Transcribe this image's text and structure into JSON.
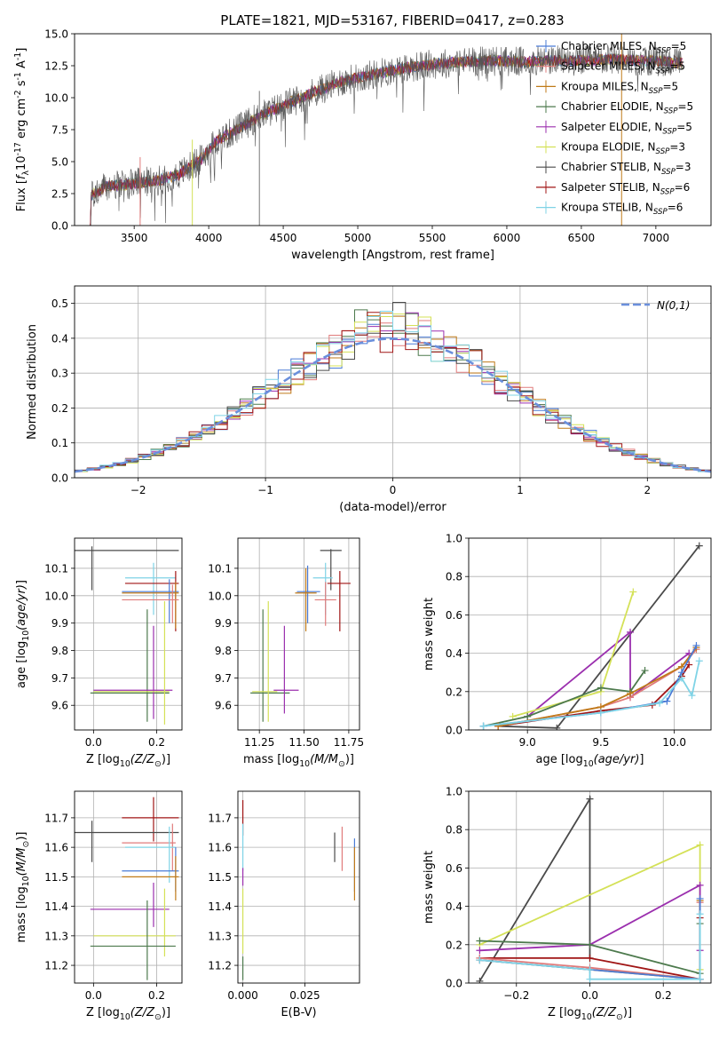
{
  "figure": {
    "title": "PLATE=1821, MJD=53167, FIBERID=0417, z=0.283",
    "legend_entries": [
      {
        "name": "Chabrier MILES, N$_{SSP}$=5",
        "color": "#4a7bd6"
      },
      {
        "name": "Salpeter MILES, N$_{SSP}$=5",
        "color": "#e07b7b"
      },
      {
        "name": "Kroupa MILES, N$_{SSP}$=5",
        "color": "#c07a18"
      },
      {
        "name": "Chabrier ELODIE, N$_{SSP}$=5",
        "color": "#4d7a4d"
      },
      {
        "name": "Salpeter ELODIE, N$_{SSP}$=5",
        "color": "#9b2fae"
      },
      {
        "name": "Kroupa ELODIE, N$_{SSP}$=3",
        "color": "#d4e157"
      },
      {
        "name": "Chabrier STELIB, N$_{SSP}$=3",
        "color": "#4a4a4a"
      },
      {
        "name": "Salpeter STELIB, N$_{SSP}$=6",
        "color": "#a01515"
      },
      {
        "name": "Kroupa STELIB, N$_{SSP}$=6",
        "color": "#7fd3e6"
      }
    ]
  },
  "chart_data": [
    {
      "id": "spectrum",
      "type": "line",
      "xlabel": "wavelength [Angstrom, rest frame]",
      "ylabel": "Flux [$f_{\\lambda}10^{-17}$ erg cm$^{-2}$ s$^{-1}$ A$^{-1}$]",
      "xlim": [
        3100,
        7370
      ],
      "ylim": [
        0,
        15
      ],
      "xticks": [
        "3500",
        "4000",
        "4500",
        "5000",
        "5500",
        "6000",
        "6500",
        "7000"
      ],
      "yticks": [
        "0.0",
        "2.5",
        "5.0",
        "7.5",
        "10.0",
        "12.5",
        "15.0"
      ],
      "continuum": [
        [
          3200,
          0
        ],
        [
          3210,
          2.3
        ],
        [
          3300,
          3.0
        ],
        [
          3500,
          3.3
        ],
        [
          3650,
          3.5
        ],
        [
          3800,
          4.0
        ],
        [
          3950,
          5.2
        ],
        [
          4050,
          6.6
        ],
        [
          4200,
          7.6
        ],
        [
          4350,
          8.6
        ],
        [
          4500,
          9.4
        ],
        [
          4700,
          10.4
        ],
        [
          4900,
          11.3
        ],
        [
          5100,
          11.8
        ],
        [
          5300,
          12.3
        ],
        [
          5500,
          12.6
        ],
        [
          5700,
          12.8
        ],
        [
          5900,
          12.9
        ],
        [
          6100,
          12.8
        ],
        [
          6300,
          12.9
        ],
        [
          6500,
          12.9
        ],
        [
          6700,
          13.0
        ],
        [
          6900,
          12.9
        ],
        [
          7100,
          12.8
        ],
        [
          7180,
          12.7
        ]
      ],
      "features": [
        [
          3540,
          0
        ],
        [
          3890,
          0
        ],
        [
          4340,
          0
        ],
        [
          6770,
          0
        ]
      ]
    },
    {
      "id": "residuals",
      "type": "bar",
      "xlabel": "(data-model)/error",
      "ylabel": "Normed distribution",
      "xlim": [
        -2.5,
        2.5
      ],
      "ylim": [
        0,
        0.55
      ],
      "xticks": [
        "−2",
        "−1",
        "0",
        "1",
        "2"
      ],
      "yticks": [
        "0.0",
        "0.1",
        "0.2",
        "0.3",
        "0.4",
        "0.5"
      ],
      "legend": "$\\mathcal{N}(0,1)$",
      "gaussian_color": "#6a8fdc"
    },
    {
      "id": "age-vs-z",
      "type": "scatter",
      "xlabel": "Z [$\\log_{10}(Z/Z_\\odot)$]",
      "ylabel": "age  [$\\log_{10}(age/yr)$]",
      "xlim": [
        -0.06,
        0.28
      ],
      "ylim": [
        9.51,
        10.21
      ],
      "xticks": [
        0.0,
        0.2
      ],
      "yticks": [
        9.6,
        9.7,
        9.8,
        9.9,
        10.0,
        10.1
      ],
      "points": [
        {
          "color": "#4a4a4a",
          "x": -0.005,
          "y": 10.165,
          "xl": -0.06,
          "xh": 0.27,
          "yl": 10.02,
          "yh": 10.18
        },
        {
          "color": "#7fd3e6",
          "x": 0.19,
          "y": 10.065,
          "xl": 0.1,
          "xh": 0.26,
          "yl": 9.93,
          "yh": 10.12
        },
        {
          "color": "#a01515",
          "x": 0.26,
          "y": 10.045,
          "xl": 0.1,
          "xh": 0.27,
          "yl": 9.87,
          "yh": 10.09
        },
        {
          "color": "#4a7bd6",
          "x": 0.24,
          "y": 10.015,
          "xl": 0.09,
          "xh": 0.27,
          "yl": 9.9,
          "yh": 10.06
        },
        {
          "color": "#c07a18",
          "x": 0.26,
          "y": 10.01,
          "xl": 0.09,
          "xh": 0.27,
          "yl": 9.88,
          "yh": 10.05
        },
        {
          "color": "#e07b7b",
          "x": 0.25,
          "y": 9.985,
          "xl": 0.09,
          "xh": 0.27,
          "yl": 9.9,
          "yh": 10.04
        },
        {
          "color": "#4d7a4d",
          "x": 0.17,
          "y": 9.645,
          "xl": -0.01,
          "xh": 0.24,
          "yl": 9.54,
          "yh": 9.95
        },
        {
          "color": "#9b2fae",
          "x": 0.19,
          "y": 9.655,
          "xl": 0.0,
          "xh": 0.25,
          "yl": 9.55,
          "yh": 9.89
        },
        {
          "color": "#d4e157",
          "x": 0.225,
          "y": 9.65,
          "xl": 0.0,
          "xh": 0.24,
          "yl": 9.53,
          "yh": 9.98
        }
      ]
    },
    {
      "id": "age-vs-mass",
      "type": "scatter",
      "xlabel": "mass [$\\log_{10}(M/M_\\odot)$]",
      "ylabel": "",
      "xlim": [
        11.13,
        11.81
      ],
      "ylim": [
        9.51,
        10.21
      ],
      "xticks": [
        11.25,
        11.5,
        11.75
      ],
      "yticks": [
        9.6,
        9.7,
        9.8,
        9.9,
        10.0,
        10.1
      ],
      "points": [
        {
          "color": "#4a4a4a",
          "x": 11.65,
          "y": 10.165,
          "xl": 11.59,
          "xh": 11.71,
          "yl": 10.02,
          "yh": 10.17
        },
        {
          "color": "#7fd3e6",
          "x": 11.62,
          "y": 10.065,
          "xl": 11.55,
          "xh": 11.66,
          "yl": 9.93,
          "yh": 10.12
        },
        {
          "color": "#a01515",
          "x": 11.7,
          "y": 10.045,
          "xl": 11.63,
          "xh": 11.76,
          "yl": 9.87,
          "yh": 10.09
        },
        {
          "color": "#4a7bd6",
          "x": 11.52,
          "y": 10.015,
          "xl": 11.46,
          "xh": 11.59,
          "yl": 9.9,
          "yh": 10.11
        },
        {
          "color": "#c07a18",
          "x": 11.51,
          "y": 10.01,
          "xl": 11.45,
          "xh": 11.57,
          "yl": 9.87,
          "yh": 10.1
        },
        {
          "color": "#e07b7b",
          "x": 11.62,
          "y": 9.985,
          "xl": 11.56,
          "xh": 11.68,
          "yl": 9.89,
          "yh": 10.05
        },
        {
          "color": "#4d7a4d",
          "x": 11.27,
          "y": 9.645,
          "xl": 11.2,
          "xh": 11.42,
          "yl": 9.54,
          "yh": 9.95
        },
        {
          "color": "#9b2fae",
          "x": 11.39,
          "y": 9.655,
          "xl": 11.33,
          "xh": 11.47,
          "yl": 9.57,
          "yh": 9.89
        },
        {
          "color": "#d4e157",
          "x": 11.3,
          "y": 9.65,
          "xl": 11.21,
          "xh": 11.35,
          "yl": 9.54,
          "yh": 9.98
        }
      ]
    },
    {
      "id": "weight-vs-age",
      "type": "line",
      "xlabel": "age  [$\\log_{10}(age/yr)$]",
      "ylabel": "mass weight",
      "xlim": [
        8.6,
        10.25
      ],
      "ylim": [
        0,
        1
      ],
      "xticks": [
        9.0,
        9.5,
        10.0
      ],
      "yticks": [
        0.0,
        0.2,
        0.4,
        0.6,
        0.8,
        1.0
      ],
      "series": [
        {
          "color": "#4a4a4a",
          "x": [
            8.8,
            9.2,
            10.17
          ],
          "y": [
            0.02,
            0.01,
            0.96
          ]
        },
        {
          "color": "#9b2fae",
          "x": [
            9.0,
            9.7,
            9.7,
            10.1
          ],
          "y": [
            0.07,
            0.51,
            0.17,
            0.4
          ]
        },
        {
          "color": "#d4e157",
          "x": [
            8.9,
            9.5,
            9.72
          ],
          "y": [
            0.07,
            0.2,
            0.72
          ]
        },
        {
          "color": "#4d7a4d",
          "x": [
            8.7,
            9.0,
            9.5,
            9.7,
            9.8
          ],
          "y": [
            0.02,
            0.07,
            0.22,
            0.2,
            0.31
          ]
        },
        {
          "color": "#a01515",
          "x": [
            8.8,
            9.5,
            9.85,
            10.05,
            10.1
          ],
          "y": [
            0.02,
            0.1,
            0.13,
            0.28,
            0.34
          ]
        },
        {
          "color": "#e07b7b",
          "x": [
            8.8,
            9.5,
            9.7,
            10.05,
            10.15
          ],
          "y": [
            0.02,
            0.12,
            0.17,
            0.33,
            0.42
          ]
        },
        {
          "color": "#c07a18",
          "x": [
            8.8,
            9.5,
            9.7,
            10.05,
            10.15
          ],
          "y": [
            0.02,
            0.12,
            0.19,
            0.33,
            0.43
          ]
        },
        {
          "color": "#4a7bd6",
          "x": [
            8.7,
            9.5,
            9.95,
            10.05,
            10.15
          ],
          "y": [
            0.02,
            0.09,
            0.15,
            0.3,
            0.44
          ]
        },
        {
          "color": "#7fd3e6",
          "x": [
            8.7,
            9.5,
            9.9,
            10.05,
            10.12,
            10.17
          ],
          "y": [
            0.02,
            0.09,
            0.14,
            0.27,
            0.18,
            0.36
          ]
        }
      ]
    },
    {
      "id": "mass-vs-z",
      "type": "scatter",
      "xlabel": "Z [$\\log_{10}(Z/Z_\\odot)$]",
      "ylabel": "mass [$\\log_{10}(M/M_\\odot)$]",
      "xlim": [
        -0.06,
        0.28
      ],
      "ylim": [
        11.14,
        11.79
      ],
      "xticks": [
        0.0,
        0.2
      ],
      "yticks": [
        11.2,
        11.3,
        11.4,
        11.5,
        11.6,
        11.7
      ],
      "points": [
        {
          "color": "#a01515",
          "x": 0.19,
          "y": 11.7,
          "xl": 0.09,
          "xh": 0.27,
          "yl": 11.62,
          "yh": 11.77
        },
        {
          "color": "#4a4a4a",
          "x": -0.005,
          "y": 11.65,
          "xl": -0.06,
          "xh": 0.27,
          "yl": 11.55,
          "yh": 11.69
        },
        {
          "color": "#e07b7b",
          "x": 0.25,
          "y": 11.615,
          "xl": 0.09,
          "xh": 0.26,
          "yl": 11.52,
          "yh": 11.68
        },
        {
          "color": "#7fd3e6",
          "x": 0.24,
          "y": 11.6,
          "xl": 0.1,
          "xh": 0.26,
          "yl": 11.48,
          "yh": 11.67
        },
        {
          "color": "#4a7bd6",
          "x": 0.26,
          "y": 11.52,
          "xl": 0.09,
          "xh": 0.27,
          "yl": 11.45,
          "yh": 11.6
        },
        {
          "color": "#c07a18",
          "x": 0.26,
          "y": 11.5,
          "xl": 0.09,
          "xh": 0.27,
          "yl": 11.42,
          "yh": 11.57
        },
        {
          "color": "#9b2fae",
          "x": 0.19,
          "y": 11.39,
          "xl": -0.01,
          "xh": 0.24,
          "yl": 11.33,
          "yh": 11.48
        },
        {
          "color": "#d4e157",
          "x": 0.225,
          "y": 11.3,
          "xl": 0.0,
          "xh": 0.26,
          "yl": 11.23,
          "yh": 11.46
        },
        {
          "color": "#4d7a4d",
          "x": 0.17,
          "y": 11.265,
          "xl": -0.01,
          "xh": 0.26,
          "yl": 11.15,
          "yh": 11.42
        }
      ]
    },
    {
      "id": "mass-vs-ebv",
      "type": "scatter",
      "xlabel": "E(B-V)",
      "ylabel": "",
      "xlim": [
        -0.002,
        0.047
      ],
      "ylim": [
        11.14,
        11.79
      ],
      "xtick_values": [
        0.0,
        0.025
      ],
      "xticks": [
        "0.000",
        "0.025"
      ],
      "yticks": [
        11.2,
        11.3,
        11.4,
        11.5,
        11.6,
        11.7
      ],
      "points": [
        {
          "color": "#a01515",
          "x": 0.0,
          "y": 11.7,
          "yl": 11.64,
          "yh": 11.76
        },
        {
          "color": "#4a4a4a",
          "x": 0.037,
          "y": 11.6,
          "yl": 11.55,
          "yh": 11.65
        },
        {
          "color": "#e07b7b",
          "x": 0.04,
          "y": 11.6,
          "yl": 11.52,
          "yh": 11.67
        },
        {
          "color": "#7fd3e6",
          "x": 0.0,
          "y": 11.6,
          "yl": 11.52,
          "yh": 11.68
        },
        {
          "color": "#4a7bd6",
          "x": 0.045,
          "y": 11.55,
          "yl": 11.45,
          "yh": 11.63
        },
        {
          "color": "#c07a18",
          "x": 0.045,
          "y": 11.52,
          "yl": 11.42,
          "yh": 11.6
        },
        {
          "color": "#9b2fae",
          "x": 0.0,
          "y": 11.5,
          "yl": 11.47,
          "yh": 11.53
        },
        {
          "color": "#d4e157",
          "x": 0.0,
          "y": 11.35,
          "yl": 11.24,
          "yh": 11.46
        },
        {
          "color": "#4d7a4d",
          "x": 0.0,
          "y": 11.2,
          "yl": 11.15,
          "yh": 11.23
        }
      ]
    },
    {
      "id": "weight-vs-z",
      "type": "line",
      "xlabel": "Z [$\\log_{10}(Z/Z_\\odot)$]",
      "ylabel": "mass weight",
      "xlim": [
        -0.33,
        0.33
      ],
      "ylim": [
        0,
        1
      ],
      "xtick_values": [
        -0.2,
        0.0,
        0.2
      ],
      "xticks": [
        "−0.2",
        "0.0",
        "0.2"
      ],
      "yticks": [
        0.0,
        0.2,
        0.4,
        0.6,
        0.8,
        1.0
      ],
      "series": [
        {
          "color": "#4a4a4a",
          "x": [
            -0.3,
            0.0,
            0.0
          ],
          "y": [
            0.01,
            0.96,
            0.13
          ]
        },
        {
          "color": "#d4e157",
          "x": [
            -0.3,
            0.3,
            0.3
          ],
          "y": [
            0.2,
            0.72,
            0.07
          ]
        },
        {
          "color": "#9b2fae",
          "x": [
            -0.3,
            0.0,
            0.3,
            0.3
          ],
          "y": [
            0.17,
            0.2,
            0.51,
            0.17
          ]
        },
        {
          "color": "#4d7a4d",
          "x": [
            -0.3,
            0.0,
            0.3,
            0.3
          ],
          "y": [
            0.22,
            0.2,
            0.05,
            0.31
          ]
        },
        {
          "color": "#a01515",
          "x": [
            -0.3,
            0.0,
            0.3,
            0.3
          ],
          "y": [
            0.13,
            0.13,
            0.02,
            0.34
          ]
        },
        {
          "color": "#e07b7b",
          "x": [
            -0.3,
            0.0,
            0.3,
            0.3
          ],
          "y": [
            0.13,
            0.08,
            0.02,
            0.42
          ]
        },
        {
          "color": "#c07a18",
          "x": [
            -0.3,
            0.0,
            0.3,
            0.3
          ],
          "y": [
            0.12,
            0.07,
            0.02,
            0.43
          ]
        },
        {
          "color": "#4a7bd6",
          "x": [
            -0.3,
            0.0,
            0.3,
            0.3
          ],
          "y": [
            0.12,
            0.07,
            0.02,
            0.44
          ]
        },
        {
          "color": "#7fd3e6",
          "x": [
            -0.3,
            0.0,
            0.0,
            0.3,
            0.3
          ],
          "y": [
            0.12,
            0.07,
            0.02,
            0.02,
            0.36
          ]
        }
      ]
    }
  ]
}
